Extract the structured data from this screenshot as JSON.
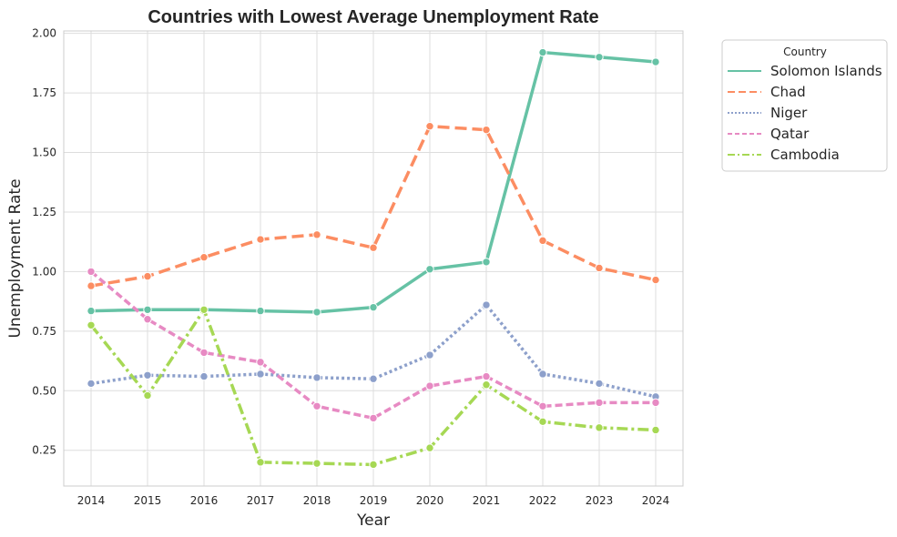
{
  "chart_data": {
    "type": "line",
    "title": "Countries with Lowest Average Unemployment Rate",
    "xlabel": "Year",
    "ylabel": "Unemployment Rate",
    "x": [
      2014,
      2015,
      2016,
      2017,
      2018,
      2019,
      2020,
      2021,
      2022,
      2023,
      2024
    ],
    "ylim": [
      0.1,
      2.01
    ],
    "yticks": [
      "0.25",
      "0.50",
      "0.75",
      "1.00",
      "1.25",
      "1.50",
      "1.75",
      "2.00"
    ],
    "grid": true,
    "legend": {
      "title": "Country",
      "placement": "outside-top-right"
    },
    "series": [
      {
        "name": "Solomon Islands",
        "color": "#66c2a5",
        "dash": "solid",
        "values": [
          0.835,
          0.84,
          0.84,
          0.835,
          0.83,
          0.85,
          1.01,
          1.04,
          1.92,
          1.9,
          1.88
        ]
      },
      {
        "name": "Chad",
        "color": "#fc8d62",
        "dash": "dashed",
        "values": [
          0.94,
          0.98,
          1.06,
          1.135,
          1.155,
          1.1,
          1.61,
          1.595,
          1.13,
          1.015,
          0.965
        ]
      },
      {
        "name": "Niger",
        "color": "#8da0cb",
        "dash": "dotted",
        "values": [
          0.53,
          0.565,
          0.56,
          0.57,
          0.555,
          0.55,
          0.65,
          0.86,
          0.57,
          0.53,
          0.475
        ]
      },
      {
        "name": "Qatar",
        "color": "#e78ac3",
        "dash": "short-dashed",
        "values": [
          1.0,
          0.8,
          0.66,
          0.62,
          0.435,
          0.385,
          0.52,
          0.56,
          0.435,
          0.45,
          0.45
        ]
      },
      {
        "name": "Cambodia",
        "color": "#a6d854",
        "dash": "dashdot",
        "values": [
          0.775,
          0.48,
          0.84,
          0.2,
          0.195,
          0.19,
          0.26,
          0.525,
          0.37,
          0.345,
          0.335
        ]
      }
    ]
  }
}
